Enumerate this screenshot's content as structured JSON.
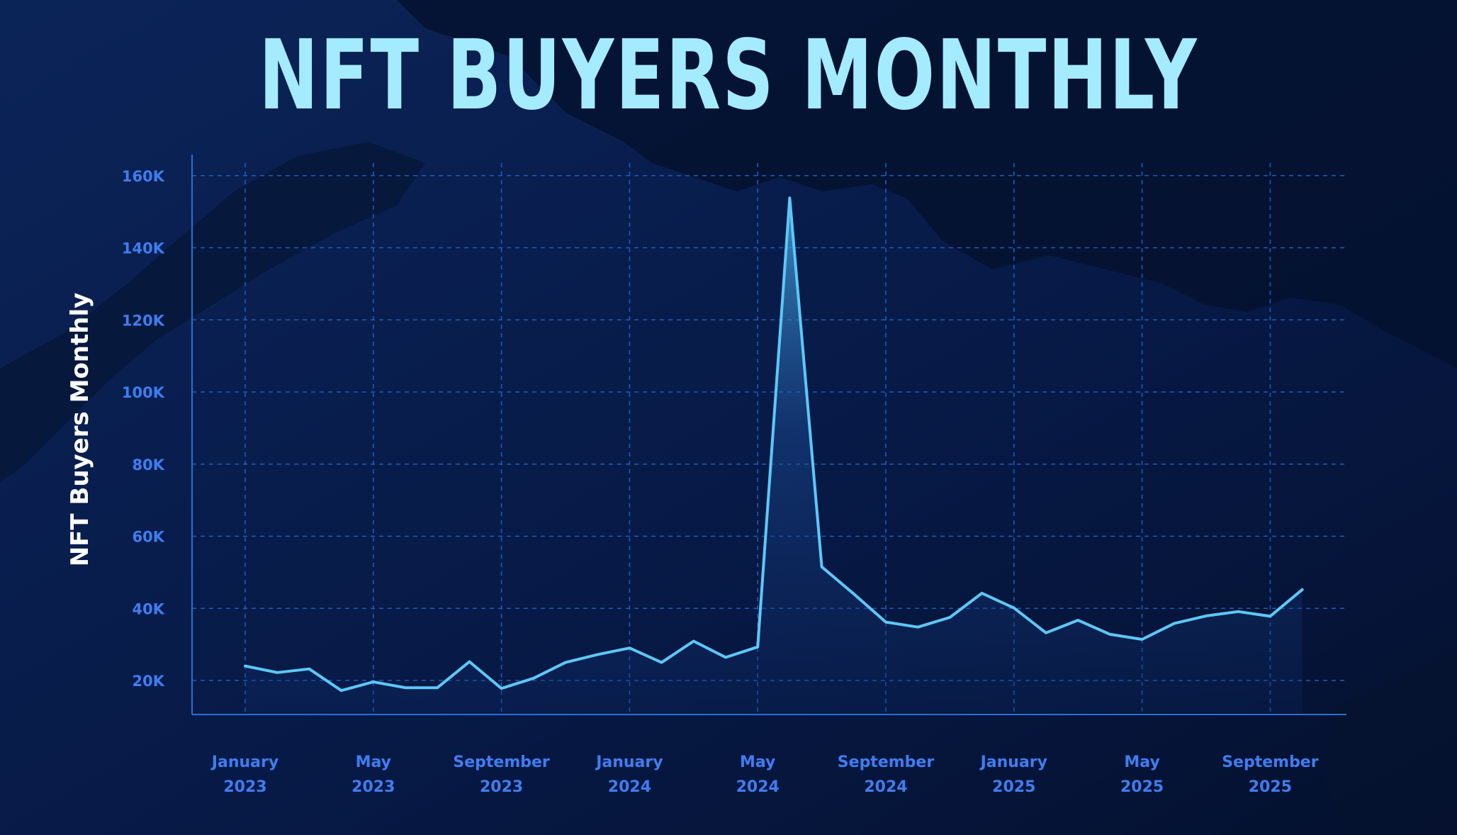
{
  "colors": {
    "background": "#06163d",
    "title": "#a5ebff",
    "line": "#5cc8f7",
    "grid": "#1e5bb8",
    "tick_text": "#3f7df0"
  },
  "chart_data": {
    "type": "area",
    "title": "NFT BUYERS MONTHLY",
    "xlabel": "",
    "ylabel": "NFT Buyers Monthly",
    "grid": true,
    "ylim": [
      10000,
      166000
    ],
    "yticks": [
      {
        "value": 20000,
        "label": "20K"
      },
      {
        "value": 40000,
        "label": "40K"
      },
      {
        "value": 60000,
        "label": "60K"
      },
      {
        "value": 80000,
        "label": "80K"
      },
      {
        "value": 100000,
        "label": "100K"
      },
      {
        "value": 120000,
        "label": "120K"
      },
      {
        "value": 140000,
        "label": "140K"
      },
      {
        "value": 160000,
        "label": "160K"
      }
    ],
    "xticks": [
      {
        "value": "2023-01",
        "month": "January",
        "year": "2023"
      },
      {
        "value": "2023-05",
        "month": "May",
        "year": "2023"
      },
      {
        "value": "2023-09",
        "month": "September",
        "year": "2023"
      },
      {
        "value": "2024-01",
        "month": "January",
        "year": "2024"
      },
      {
        "value": "2024-05",
        "month": "May",
        "year": "2024"
      },
      {
        "value": "2024-09",
        "month": "September",
        "year": "2024"
      },
      {
        "value": "2025-01",
        "month": "January",
        "year": "2025"
      },
      {
        "value": "2025-05",
        "month": "May",
        "year": "2025"
      },
      {
        "value": "2025-09",
        "month": "September",
        "year": "2025"
      }
    ],
    "x": [
      "2023-01",
      "2023-02",
      "2023-03",
      "2023-04",
      "2023-05",
      "2023-06",
      "2023-07",
      "2023-08",
      "2023-09",
      "2023-10",
      "2023-11",
      "2023-12",
      "2024-01",
      "2024-02",
      "2024-03",
      "2024-04",
      "2024-05",
      "2024-06",
      "2024-07",
      "2024-08",
      "2024-09",
      "2024-10",
      "2024-11",
      "2024-12",
      "2025-01",
      "2025-02",
      "2025-03",
      "2025-04",
      "2025-05",
      "2025-06",
      "2025-07",
      "2025-08",
      "2025-09",
      "2025-10"
    ],
    "series": [
      {
        "values": [
          24000,
          22200,
          23200,
          17200,
          19600,
          18000,
          18000,
          25200,
          17800,
          20600,
          25000,
          27200,
          29000,
          25000,
          30900,
          26400,
          29300,
          153800,
          51500,
          44000,
          36200,
          34800,
          37500,
          44200,
          40100,
          33200,
          36700,
          32800,
          31400,
          35800,
          37900,
          39100,
          37800,
          45200
        ]
      }
    ]
  }
}
